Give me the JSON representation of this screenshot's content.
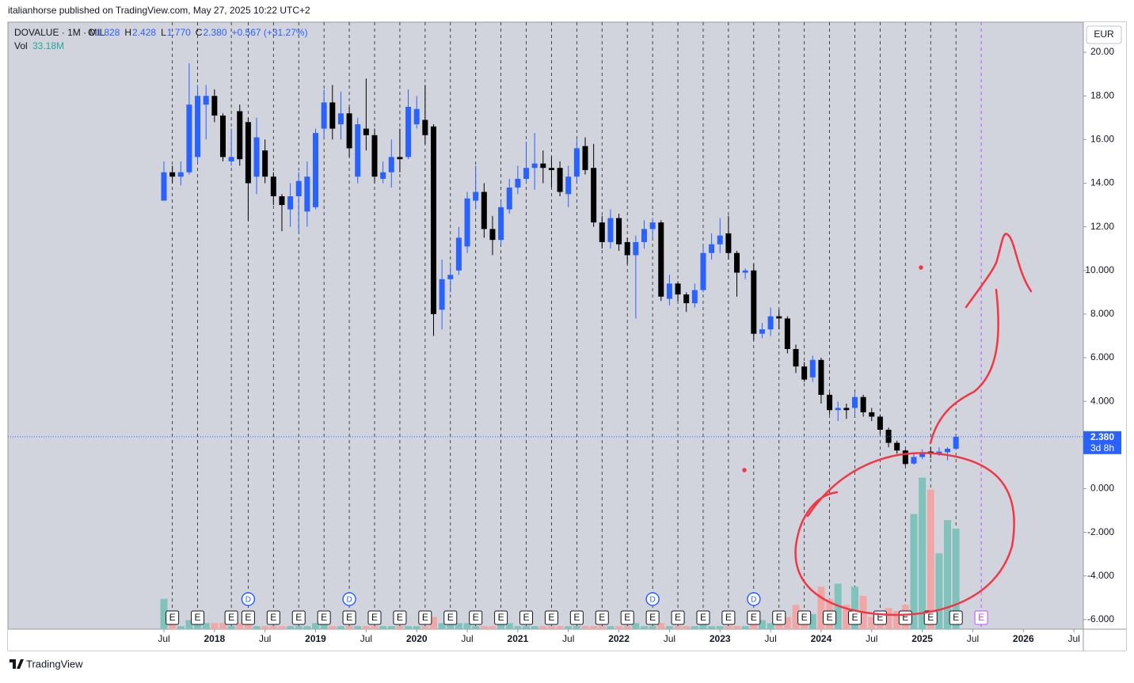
{
  "header": {
    "published": "italianhorse published on TradingView.com, May 27, 2025 10:22 UTC+2",
    "brand": "TradingView"
  },
  "chart_data": {
    "type": "candlestick",
    "legend": {
      "symbol": "DOVALUE · 1M · MIL",
      "items": [
        {
          "key": "O",
          "value": "1.828"
        },
        {
          "key": "H",
          "value": "2.428"
        },
        {
          "key": "L",
          "value": "1.770"
        },
        {
          "key": "C",
          "value": "2.380"
        }
      ],
      "change": "+0.567 (+31.27%)",
      "vol_label": "Vol",
      "vol_value": "33.18M"
    },
    "currency": "EUR",
    "price_label": "2.380",
    "countdown": "3d 8h",
    "up_color": "#2962ff",
    "down_color": "#000000",
    "vol_up_color": "#80c2bc",
    "vol_down_color": "#f2a7a7",
    "x": [
      "2017-07",
      "2017-08",
      "2017-09",
      "2017-10",
      "2017-11",
      "2017-12",
      "2018-01",
      "2018-02",
      "2018-03",
      "2018-04",
      "2018-05",
      "2018-06",
      "2018-07",
      "2018-08",
      "2018-09",
      "2018-10",
      "2018-11",
      "2018-12",
      "2019-01",
      "2019-02",
      "2019-03",
      "2019-04",
      "2019-05",
      "2019-06",
      "2019-07",
      "2019-08",
      "2019-09",
      "2019-10",
      "2019-11",
      "2019-12",
      "2020-01",
      "2020-02",
      "2020-03",
      "2020-04",
      "2020-05",
      "2020-06",
      "2020-07",
      "2020-08",
      "2020-09",
      "2020-10",
      "2020-11",
      "2020-12",
      "2021-01",
      "2021-02",
      "2021-03",
      "2021-04",
      "2021-05",
      "2021-06",
      "2021-07",
      "2021-08",
      "2021-09",
      "2021-10",
      "2021-11",
      "2021-12",
      "2022-01",
      "2022-02",
      "2022-03",
      "2022-04",
      "2022-05",
      "2022-06",
      "2022-07",
      "2022-08",
      "2022-09",
      "2022-10",
      "2022-11",
      "2022-12",
      "2023-01",
      "2023-02",
      "2023-03",
      "2023-04",
      "2023-05",
      "2023-06",
      "2023-07",
      "2023-08",
      "2023-09",
      "2023-10",
      "2023-11",
      "2023-12",
      "2024-01",
      "2024-02",
      "2024-03",
      "2024-04",
      "2024-05",
      "2024-06",
      "2024-07",
      "2024-08",
      "2024-09",
      "2024-10",
      "2024-11",
      "2024-12",
      "2025-01",
      "2025-02",
      "2025-03",
      "2025-04",
      "2025-05"
    ],
    "open": [
      13.2,
      14.5,
      14.3,
      14.5,
      15.2,
      17.6,
      18.0,
      17.1,
      15.0,
      17.3,
      16.8,
      14.3,
      15.5,
      14.3,
      13.4,
      12.8,
      13.4,
      12.7,
      12.9,
      16.5,
      17.7,
      16.7,
      17.2,
      14.3,
      16.5,
      16.2,
      14.2,
      14.5,
      15.2,
      15.2,
      16.7,
      16.9,
      16.6,
      8.2,
      9.6,
      10.0,
      11.1,
      13.2,
      13.6,
      11.9,
      11.4,
      12.8,
      13.8,
      14.2,
      14.7,
      14.9,
      14.7,
      14.7,
      13.5,
      14.3,
      15.7,
      14.7,
      12.2,
      11.3,
      12.4,
      11.3,
      10.7,
      11.3,
      11.9,
      12.2,
      8.7,
      9.4,
      8.9,
      8.5,
      9.1,
      10.8,
      11.2,
      11.7,
      10.8,
      9.9,
      10.0,
      7.1,
      7.3,
      7.9,
      7.8,
      6.4,
      5.6,
      5.1,
      5.9,
      4.3,
      3.6,
      3.7,
      3.7,
      4.2,
      3.5,
      3.3,
      2.7,
      2.1,
      1.75,
      1.15,
      1.45,
      1.7,
      1.6,
      1.67,
      1.828
    ],
    "high": [
      15.0,
      14.8,
      15.0,
      19.5,
      18.5,
      18.5,
      18.3,
      17.2,
      16.5,
      17.6,
      17.0,
      17.0,
      16.0,
      14.5,
      13.5,
      14.0,
      14.5,
      15.0,
      16.5,
      18.3,
      18.5,
      18.2,
      17.5,
      17.0,
      18.8,
      16.5,
      15.0,
      16.0,
      16.5,
      18.3,
      18.0,
      18.5,
      16.7,
      10.5,
      10.2,
      12.0,
      13.6,
      14.8,
      14.0,
      12.5,
      13.2,
      14.2,
      14.8,
      15.9,
      16.3,
      15.5,
      15.2,
      15.0,
      14.8,
      16.0,
      16.1,
      15.8,
      12.5,
      12.8,
      12.6,
      11.5,
      11.6,
      12.3,
      12.4,
      12.3,
      9.8,
      9.5,
      9.0,
      9.4,
      11.1,
      11.7,
      12.4,
      12.5,
      10.9,
      10.1,
      10.3,
      7.6,
      8.3,
      8.2,
      7.9,
      6.6,
      5.8,
      6.1,
      6.0,
      4.4,
      4.0,
      3.9,
      4.4,
      4.3,
      3.7,
      3.4,
      2.8,
      2.2,
      1.8,
      1.6,
      1.8,
      1.9,
      1.9,
      1.9,
      2.428
    ],
    "low": [
      13.2,
      14.0,
      13.9,
      14.4,
      14.9,
      16.0,
      16.8,
      15.0,
      14.8,
      14.8,
      12.3,
      13.5,
      14.0,
      13.0,
      11.8,
      12.0,
      11.8,
      12.0,
      12.8,
      16.0,
      16.0,
      16.0,
      15.2,
      14.0,
      15.5,
      14.0,
      14.0,
      13.8,
      14.5,
      15.1,
      16.5,
      15.8,
      7.0,
      7.3,
      9.0,
      9.8,
      10.8,
      12.8,
      11.5,
      10.7,
      11.2,
      12.6,
      13.5,
      14.0,
      13.7,
      14.0,
      13.8,
      13.4,
      12.9,
      14.0,
      14.4,
      12.0,
      11.0,
      11.0,
      10.9,
      10.3,
      7.8,
      11.0,
      11.5,
      8.6,
      8.4,
      8.6,
      8.1,
      8.3,
      9.0,
      10.5,
      10.8,
      10.5,
      8.8,
      9.6,
      6.8,
      6.9,
      7.0,
      7.3,
      6.2,
      5.3,
      4.9,
      4.9,
      3.9,
      3.4,
      3.1,
      3.2,
      3.4,
      3.3,
      3.1,
      2.5,
      1.9,
      1.6,
      1.05,
      1.1,
      1.35,
      1.4,
      1.5,
      1.3,
      1.77
    ],
    "close": [
      14.5,
      14.3,
      14.5,
      17.6,
      18.0,
      18.0,
      17.1,
      15.2,
      15.2,
      15.1,
      14.0,
      16.1,
      14.3,
      13.4,
      13.0,
      13.4,
      14.1,
      14.3,
      16.3,
      17.7,
      16.5,
      17.2,
      15.6,
      16.7,
      16.2,
      14.3,
      14.5,
      15.2,
      15.1,
      17.5,
      17.4,
      16.2,
      8.0,
      9.6,
      9.8,
      11.5,
      13.3,
      13.6,
      11.9,
      11.4,
      12.9,
      13.8,
      14.2,
      14.7,
      14.9,
      14.7,
      14.6,
      13.6,
      14.3,
      15.6,
      14.6,
      12.2,
      11.3,
      12.4,
      11.2,
      10.7,
      11.3,
      11.9,
      12.2,
      8.8,
      9.4,
      8.9,
      8.5,
      9.1,
      10.8,
      11.2,
      11.6,
      10.8,
      9.9,
      10.0,
      7.1,
      7.3,
      7.9,
      7.8,
      6.4,
      5.6,
      5.0,
      5.9,
      4.3,
      3.6,
      3.7,
      3.6,
      4.2,
      3.5,
      3.3,
      2.7,
      2.1,
      1.75,
      1.13,
      1.45,
      1.65,
      1.6,
      1.7,
      1.83,
      2.38
    ],
    "volume": [
      10,
      2,
      1,
      3,
      3,
      2,
      2,
      2,
      1,
      2,
      2,
      1,
      1,
      1,
      1,
      1,
      1,
      1,
      2,
      2,
      1,
      1,
      1,
      1,
      1,
      1,
      1,
      1,
      1,
      1,
      1,
      1,
      4,
      2,
      2,
      2,
      2,
      1,
      1,
      1,
      2,
      2,
      1,
      1,
      1,
      1,
      1,
      1,
      1,
      1,
      1,
      1,
      1,
      1,
      1,
      1,
      2,
      1,
      1,
      2,
      1,
      1,
      1,
      1,
      2,
      1,
      1,
      1,
      1,
      1,
      3,
      3,
      2,
      2,
      4,
      8,
      6,
      5,
      14,
      10,
      15,
      8,
      14,
      11,
      4,
      4,
      7,
      6,
      8,
      38,
      50,
      46,
      25,
      36,
      33.18
    ],
    "ylim": [
      -6.44,
      21.38
    ],
    "yticks": [
      {
        "value": 20,
        "label": "20.00"
      },
      {
        "value": 18,
        "label": "18.00"
      },
      {
        "value": 16,
        "label": "16.00"
      },
      {
        "value": 14,
        "label": "14.00"
      },
      {
        "value": 12,
        "label": "12.00"
      },
      {
        "value": 10,
        "label": "10.000"
      },
      {
        "value": 8,
        "label": "8.000"
      },
      {
        "value": 6,
        "label": "6.000"
      },
      {
        "value": 4,
        "label": "4.000"
      },
      {
        "value": 0,
        "label": "0.000"
      },
      {
        "value": -2,
        "label": "-2.000"
      },
      {
        "value": -4,
        "label": "-4.000"
      },
      {
        "value": -6,
        "label": "-6.000"
      }
    ],
    "xticks": [
      {
        "value": "2017-07",
        "label": "Jul"
      },
      {
        "value": "2018-01",
        "label": "2018"
      },
      {
        "value": "2018-07",
        "label": "Jul"
      },
      {
        "value": "2019-01",
        "label": "2019"
      },
      {
        "value": "2019-07",
        "label": "Jul"
      },
      {
        "value": "2020-01",
        "label": "2020"
      },
      {
        "value": "2020-07",
        "label": "Jul"
      },
      {
        "value": "2021-01",
        "label": "2021"
      },
      {
        "value": "2021-07",
        "label": "Jul"
      },
      {
        "value": "2022-01",
        "label": "2022"
      },
      {
        "value": "2022-07",
        "label": "Jul"
      },
      {
        "value": "2023-01",
        "label": "2023"
      },
      {
        "value": "2023-07",
        "label": "Jul"
      },
      {
        "value": "2024-01",
        "label": "2024"
      },
      {
        "value": "2024-07",
        "label": "Jul"
      },
      {
        "value": "2025-01",
        "label": "2025"
      },
      {
        "value": "2025-07",
        "label": "Jul"
      },
      {
        "value": "2026-01",
        "label": "2026"
      },
      {
        "value": "2026-07",
        "label": "Jul"
      }
    ],
    "earnings": {
      "label": "E",
      "dates": [
        "2017-08",
        "2017-11",
        "2018-03",
        "2018-05",
        "2018-08",
        "2018-11",
        "2019-02",
        "2019-05",
        "2019-08",
        "2019-11",
        "2020-02",
        "2020-05",
        "2020-08",
        "2020-11",
        "2021-02",
        "2021-05",
        "2021-08",
        "2021-11",
        "2022-02",
        "2022-05",
        "2022-08",
        "2022-11",
        "2023-02",
        "2023-05",
        "2023-08",
        "2023-11",
        "2024-02",
        "2024-05",
        "2024-08",
        "2024-11",
        "2025-02",
        "2025-05"
      ],
      "upcoming": "2025-08"
    },
    "dividends": {
      "label": "D",
      "dates": [
        "2018-05",
        "2019-05",
        "2022-05",
        "2023-05"
      ]
    }
  }
}
